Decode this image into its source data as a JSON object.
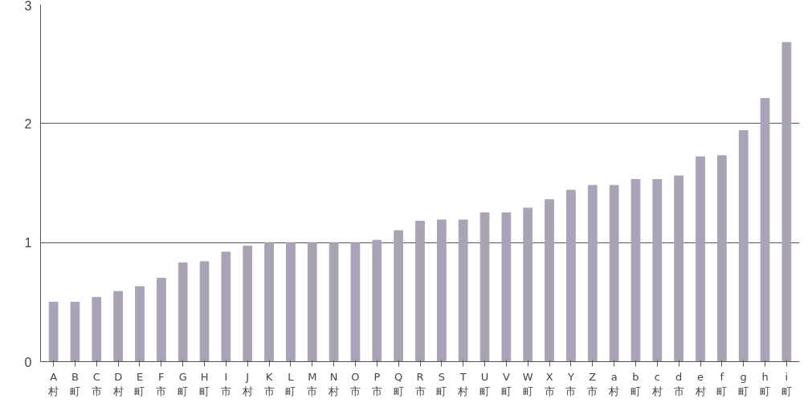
{
  "chart_data": {
    "type": "bar",
    "categories": [
      "A\n村",
      "B\n町",
      "C\n市",
      "D\n村",
      "E\n町",
      "F\n市",
      "G\n町",
      "H\n町",
      "I\n市",
      "J\n村",
      "K\n市",
      "L\n町",
      "M\n市",
      "N\n村",
      "O\n市",
      "P\n市",
      "Q\n町",
      "R\n市",
      "S\n町",
      "T\n村",
      "U\n町",
      "V\n町",
      "W\n町",
      "X\n市",
      "Y\n市",
      "Z\n市",
      "a\n村",
      "b\n町",
      "c\n村",
      "d\n市",
      "e\n村",
      "f\n町",
      "g\n町",
      "h\n町",
      "i\n町"
    ],
    "values": [
      0.5,
      0.5,
      0.54,
      0.59,
      0.63,
      0.7,
      0.83,
      0.84,
      0.92,
      0.97,
      1.0,
      1.0,
      1.0,
      1.0,
      1.0,
      1.02,
      1.1,
      1.18,
      1.19,
      1.19,
      1.25,
      1.25,
      1.29,
      1.36,
      1.44,
      1.48,
      1.48,
      1.53,
      1.53,
      1.56,
      1.72,
      1.73,
      1.94,
      2.21,
      2.68
    ],
    "color": "#a9a3b5",
    "ylim": [
      0,
      3
    ],
    "yticks": [
      0,
      1,
      2,
      3
    ],
    "grid": "y"
  }
}
